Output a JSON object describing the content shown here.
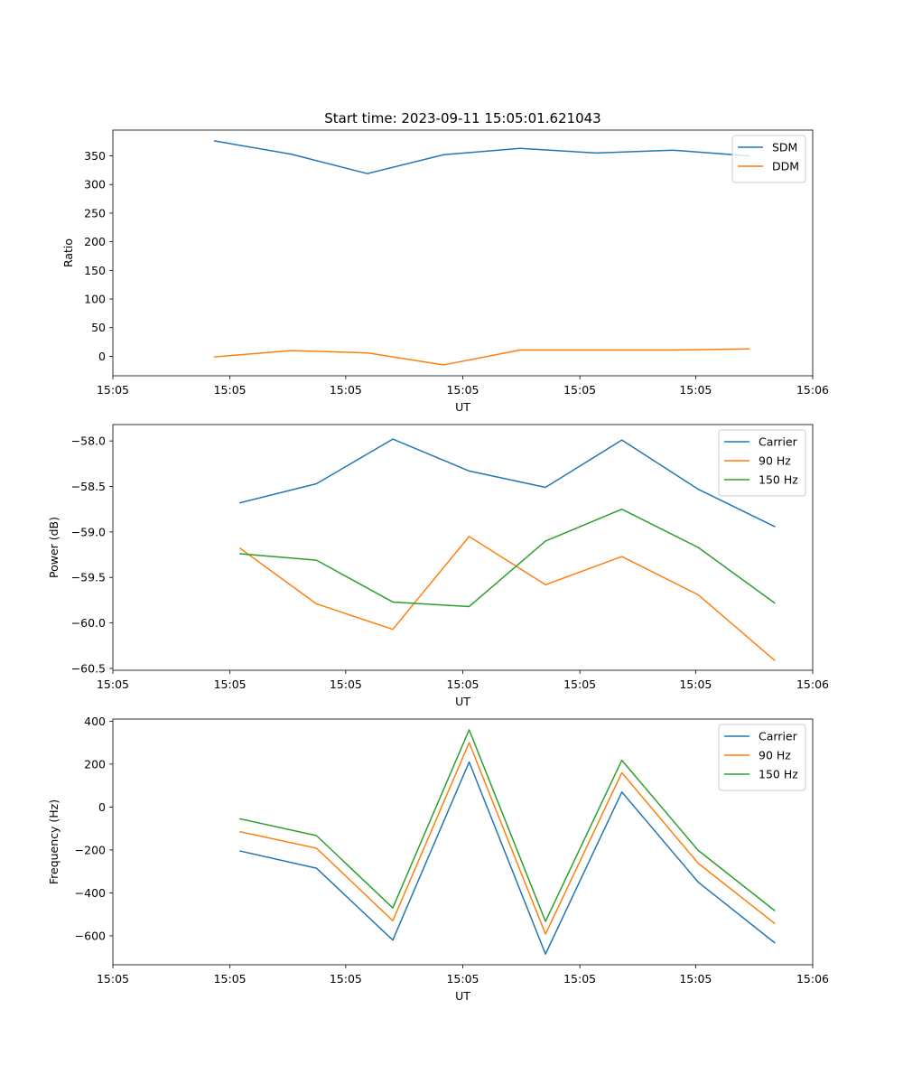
{
  "figure_title": "Start time: 2023-09-11 15:05:01.621043",
  "chart_data": [
    {
      "type": "line",
      "title": "Start time: 2023-09-11 15:05:01.621043",
      "xlabel": "UT",
      "ylabel": "Ratio",
      "x": [
        1.3,
        1.9,
        2.5,
        3.1,
        3.7,
        4.3,
        4.9,
        5.5
      ],
      "xlim": [
        0.5,
        6.0
      ],
      "xticks": [
        0.5,
        1.42,
        2.33,
        3.25,
        4.17,
        5.08,
        6.0
      ],
      "xtick_labels": [
        "15:05",
        "15:05",
        "15:05",
        "15:05",
        "15:05",
        "15:05",
        "15:06"
      ],
      "ylim": [
        -34,
        395
      ],
      "yticks": [
        0,
        50,
        100,
        150,
        200,
        250,
        300,
        350
      ],
      "ytick_labels": [
        "0",
        "50",
        "100",
        "150",
        "200",
        "250",
        "300",
        "350"
      ],
      "legend": "top-right",
      "series": [
        {
          "name": "SDM",
          "color": "#1f77b4",
          "values": [
            376,
            353,
            319,
            352,
            363,
            355,
            360,
            350
          ]
        },
        {
          "name": "DDM",
          "color": "#ff7f0e",
          "values": [
            -1,
            10,
            6,
            -15,
            11,
            11,
            11,
            13
          ]
        }
      ]
    },
    {
      "type": "line",
      "title": "",
      "xlabel": "UT",
      "ylabel": "Power (dB)",
      "x": [
        1.0,
        1.6,
        2.2,
        2.8,
        3.4,
        4.0,
        4.6,
        5.2
      ],
      "xlim": [
        0.0,
        5.5
      ],
      "xticks": [
        0.0,
        0.92,
        1.83,
        2.75,
        3.67,
        4.58,
        5.5
      ],
      "xtick_labels": [
        "15:05",
        "15:05",
        "15:05",
        "15:05",
        "15:05",
        "15:05",
        "15:06"
      ],
      "ylim": [
        -60.52,
        -57.82
      ],
      "yticks": [
        -58.0,
        -58.5,
        -59.0,
        -59.5,
        -60.0,
        -60.5
      ],
      "ytick_labels": [
        "−58.0",
        "−58.5",
        "−59.0",
        "−59.5",
        "−60.0",
        "−60.5"
      ],
      "legend": "top-right",
      "series": [
        {
          "name": "Carrier",
          "color": "#1f77b4",
          "values": [
            -58.68,
            -58.47,
            -57.98,
            -58.33,
            -58.51,
            -57.99,
            -58.53,
            -58.94
          ]
        },
        {
          "name": "90 Hz",
          "color": "#ff7f0e",
          "values": [
            -59.18,
            -59.79,
            -60.07,
            -59.05,
            -59.58,
            -59.27,
            -59.69,
            -60.41
          ]
        },
        {
          "name": "150 Hz",
          "color": "#2ca02c",
          "values": [
            -59.24,
            -59.31,
            -59.77,
            -59.82,
            -59.1,
            -58.75,
            -59.17,
            -59.78
          ]
        }
      ]
    },
    {
      "type": "line",
      "title": "",
      "xlabel": "UT",
      "ylabel": "Frequency (Hz)",
      "x": [
        1.0,
        1.6,
        2.2,
        2.8,
        3.4,
        4.0,
        4.6,
        5.2
      ],
      "xlim": [
        0.0,
        5.5
      ],
      "xticks": [
        0.0,
        0.92,
        1.83,
        2.75,
        3.67,
        4.58,
        5.5
      ],
      "xtick_labels": [
        "15:05",
        "15:05",
        "15:05",
        "15:05",
        "15:05",
        "15:05",
        "15:06"
      ],
      "ylim": [
        -735,
        410
      ],
      "yticks": [
        400,
        200,
        0,
        -200,
        -400,
        -600
      ],
      "ytick_labels": [
        "400",
        "200",
        "0",
        "−200",
        "−400",
        "−600"
      ],
      "legend": "top-right",
      "series": [
        {
          "name": "Carrier",
          "color": "#1f77b4",
          "values": [
            -205,
            -285,
            -620,
            210,
            -685,
            70,
            -350,
            -632
          ]
        },
        {
          "name": "90 Hz",
          "color": "#ff7f0e",
          "values": [
            -115,
            -192,
            -530,
            300,
            -592,
            160,
            -262,
            -542
          ]
        },
        {
          "name": "150 Hz",
          "color": "#2ca02c",
          "values": [
            -55,
            -133,
            -470,
            360,
            -533,
            218,
            -202,
            -482
          ]
        }
      ]
    }
  ]
}
